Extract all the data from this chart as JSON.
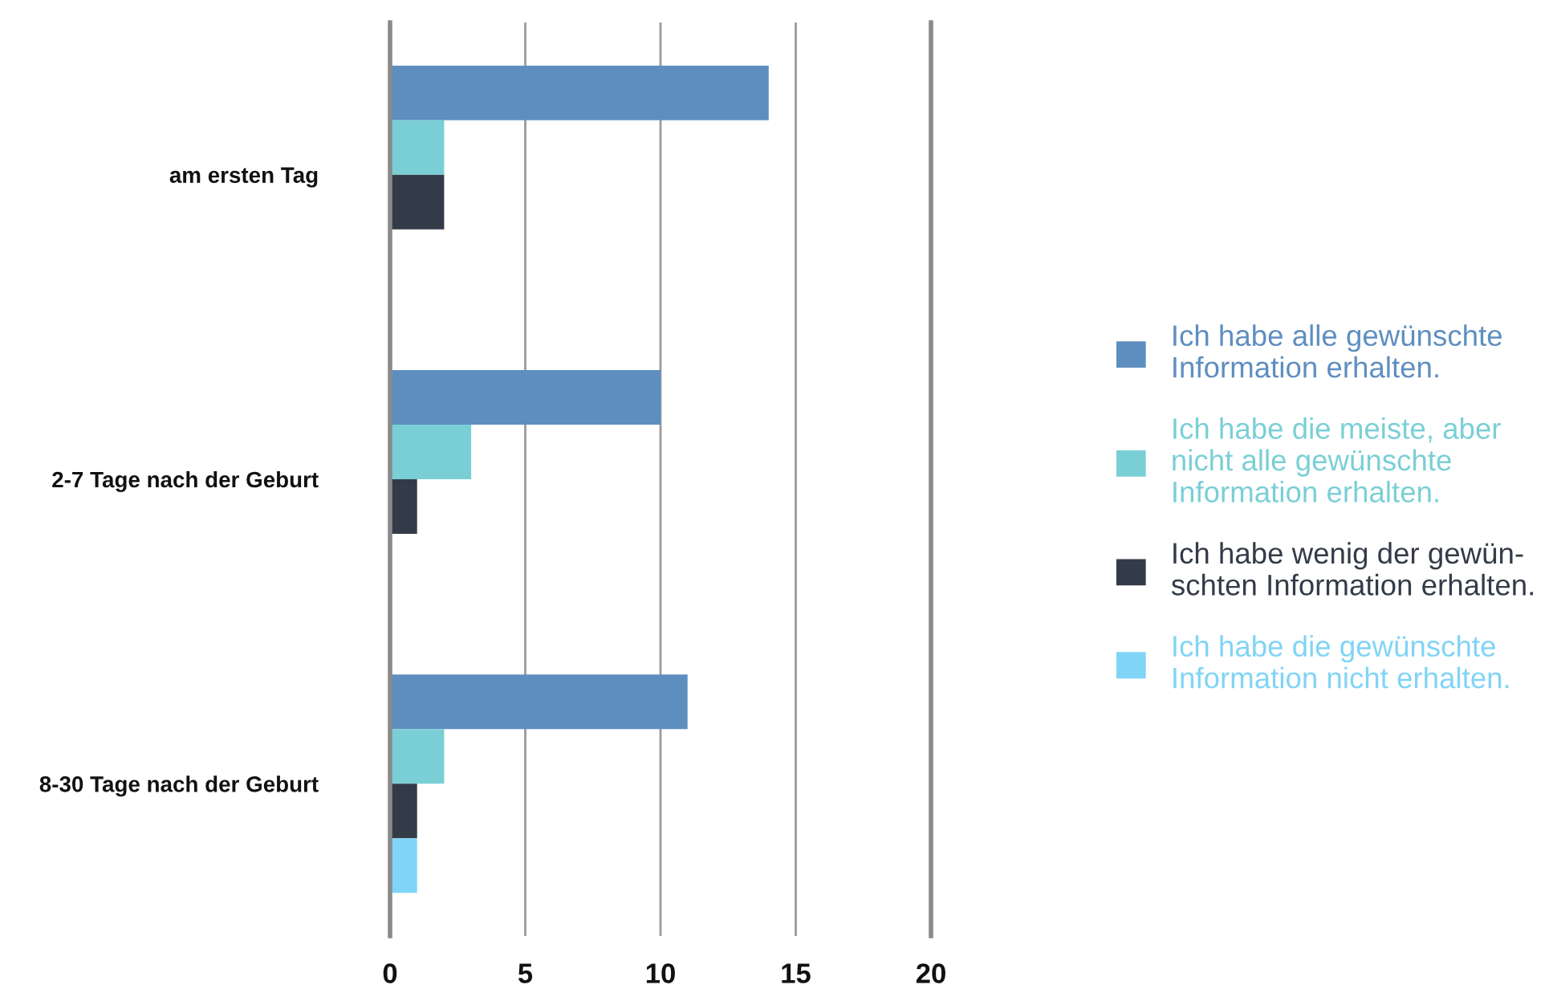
{
  "chart_data": {
    "type": "bar",
    "orientation": "horizontal",
    "categories": [
      "am ersten Tag",
      "2-7 Tage nach der Geburt",
      "8-30 Tage nach der Geburt"
    ],
    "series": [
      {
        "name": "Ich habe alle gewünschte\nInformation erhalten.",
        "color": "#5e8ec0",
        "values": [
          14,
          10,
          11
        ]
      },
      {
        "name": "Ich habe die meiste, aber\nnicht alle gewünschte\nInformation erhalten.",
        "color": "#7acfd6",
        "values": [
          2,
          3,
          2
        ]
      },
      {
        "name": "Ich habe wenig der gewün-\nschten Information erhalten.",
        "color": "#343b48",
        "values": [
          2,
          1,
          1
        ]
      },
      {
        "name": "Ich habe die gewünschte\nInformation nicht erhalten.",
        "color": "#80d4f6",
        "values": [
          0,
          0,
          1
        ]
      }
    ],
    "xlim": [
      0,
      20
    ],
    "xticks": [
      0,
      5,
      10,
      15,
      20
    ],
    "grid": "x",
    "legend": "right"
  }
}
